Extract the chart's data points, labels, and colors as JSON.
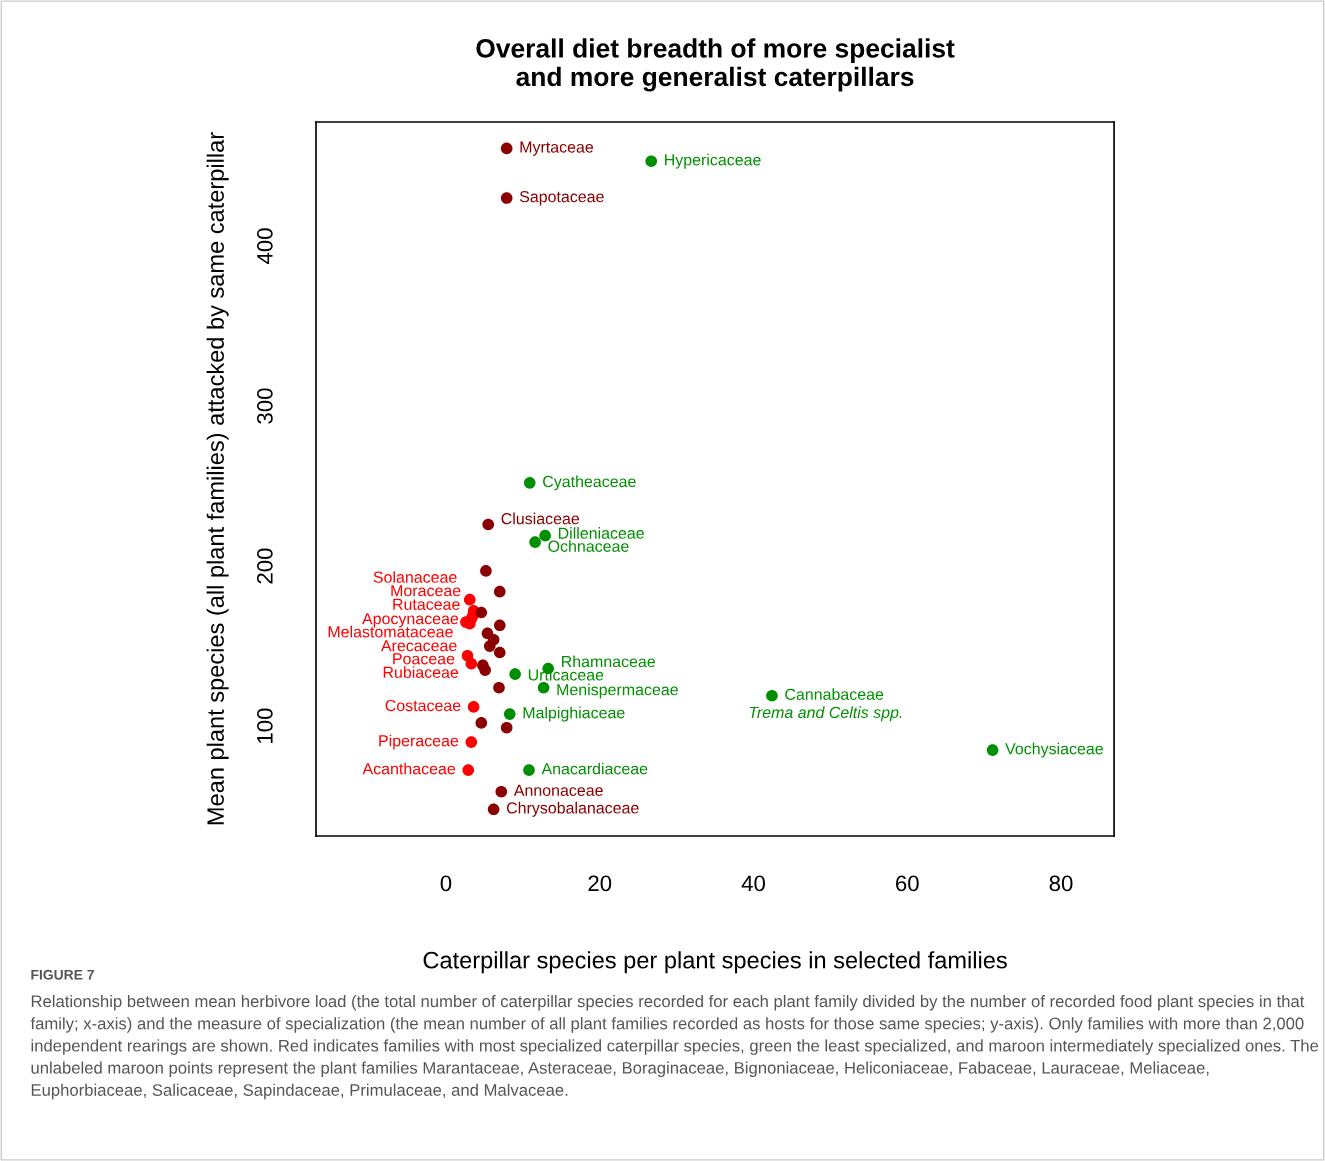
{
  "chart_data": {
    "type": "scatter",
    "title": "Overall diet breadth of more specialist\nand more generalist caterpillars",
    "xlabel": "Caterpillar species per plant species in selected families",
    "ylabel": "Mean plant species (all plant families) attacked by same caterpillar",
    "xlim": [
      -16.9,
      86.9
    ],
    "ylim": [
      31.3,
      477.5
    ],
    "xticks": [
      0,
      20,
      40,
      60,
      80
    ],
    "yticks": [
      100,
      200,
      300,
      400
    ],
    "grid": false,
    "marker": "circle",
    "series": [
      {
        "color": "#ff0000",
        "x": [
          3.1,
          3.6,
          3.5,
          2.6,
          3.1,
          3.3,
          2.8,
          3.3,
          3.6,
          3.3,
          2.9
        ],
        "values": [
          179,
          172,
          169,
          165,
          164,
          167,
          144,
          139,
          112,
          90,
          72.5
        ],
        "value_labels": [
          "Solanaceae",
          "Moraceae",
          "Rutaceae",
          "Melastomataceae",
          "Arecaceae",
          "Apocynaceae",
          "Poaceae",
          "Rubiaceae",
          "Costaceae",
          "Piperaceae",
          "Acanthaceae"
        ]
      },
      {
        "color": "#8b0000",
        "x": [
          7.9,
          7.9,
          5.5,
          7.2,
          6.2,
          5.2,
          7.0,
          4.6,
          7.0,
          5.4,
          6.2,
          5.7,
          7.0,
          4.8,
          5.1,
          6.9,
          4.6,
          7.9
        ],
        "values": [
          461,
          430,
          226,
          59,
          48,
          197,
          184,
          171,
          163,
          158,
          154,
          150,
          146,
          138,
          135,
          124,
          102,
          99
        ],
        "value_labels": [
          "Myrtaceae",
          "Sapotaceae",
          "Clusiaceae",
          "Annonaceae",
          "Chrysobalanaceae",
          null,
          null,
          null,
          null,
          null,
          null,
          null,
          null,
          null,
          null,
          null,
          null,
          null
        ]
      },
      {
        "color": "#008f00",
        "x": [
          26.7,
          10.9,
          12.9,
          11.6,
          13.3,
          9.0,
          12.7,
          42.4,
          8.3,
          10.8,
          71.1
        ],
        "values": [
          453,
          252,
          219,
          215,
          136,
          132.5,
          124,
          119,
          107.5,
          72.5,
          85
        ],
        "value_labels": [
          "Hypericaceae",
          "Cyatheaceae",
          "Dilleniaceae",
          "Ochnaceae",
          "Rhamnaceae",
          "Urticaceae",
          "Menispermaceae",
          "Cannabaceae",
          "Malpighiaceae",
          "Anacardiaceae",
          "Vochysiaceae"
        ]
      }
    ],
    "annotations": [
      {
        "text": "Trema and Celtis spp.",
        "x": 42.4,
        "y": 119
      },
      "FIGURE 7",
      "Relationship between mean herbivore load (the total number of caterpillar species recorded for each plant family divided by the number of recorded food plant species in that family; x-axis) and the measure of specialization (the mean number of all plant families recorded as hosts for those same species; y-axis). Only families with more than 2,000 independent rearings are shown. Red indicates families with most specialized caterpillar species, green the least specialized, and maroon intermediately specialized ones. The unlabeled maroon points represent the plant families Marantaceae, Asteraceae, Boraginaceae, Bignoniaceae, Heliconiaceae, Fabaceae, Lauraceae, Meliaceae, Euphorbiaceae, Salicaceae, Sapindaceae, Primulaceae, and Malvaceae."
    ]
  }
}
